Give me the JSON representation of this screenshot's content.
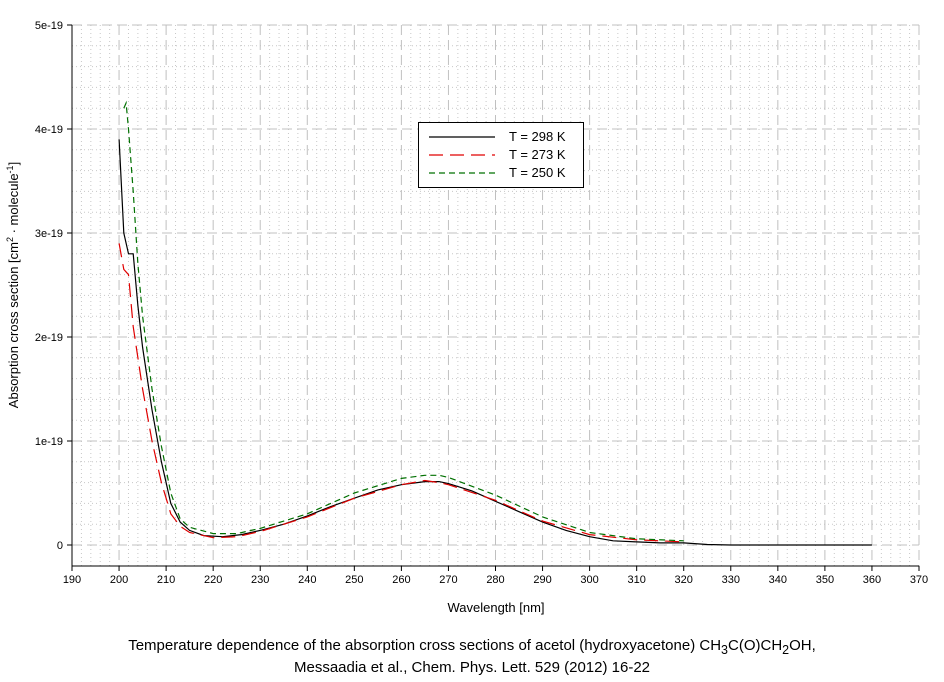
{
  "chart_data": {
    "type": "line",
    "title": "",
    "xlabel": "Wavelength [nm]",
    "ylabel": "Absorption cross section [cm² · molecule⁻¹]",
    "ylabel_main": "Absorption cross section [cm",
    "ylabel_sup1": "2",
    "ylabel_mid": " · molecule",
    "ylabel_sup2": "-1",
    "ylabel_end": "]",
    "xlim": [
      190,
      370
    ],
    "ylim": [
      0,
      5e-19
    ],
    "xticks": [
      190,
      200,
      210,
      220,
      230,
      240,
      250,
      260,
      270,
      280,
      290,
      300,
      310,
      320,
      330,
      340,
      350,
      360,
      370
    ],
    "yticks": [
      {
        "v": 0,
        "label": "0"
      },
      {
        "v": 1e-19,
        "label": "1e-19"
      },
      {
        "v": 2e-19,
        "label": "2e-19"
      },
      {
        "v": 3e-19,
        "label": "3e-19"
      },
      {
        "v": 4e-19,
        "label": "4e-19"
      },
      {
        "v": 5e-19,
        "label": "5e-19"
      }
    ],
    "grid": true,
    "legend_position": "top-center",
    "series": [
      {
        "name": "T = 298 K",
        "color": "#000000",
        "dash": "",
        "x": [
          200,
          201,
          202,
          203,
          204,
          205,
          207,
          209,
          211,
          213,
          215,
          218,
          222,
          226,
          230,
          235,
          240,
          245,
          250,
          255,
          260,
          265,
          268,
          270,
          275,
          280,
          285,
          290,
          295,
          300,
          305,
          310,
          315,
          320,
          325,
          330,
          360
        ],
        "y_e19": [
          3.9,
          3.0,
          2.8,
          2.8,
          2.3,
          1.9,
          1.3,
          0.8,
          0.4,
          0.22,
          0.14,
          0.09,
          0.08,
          0.1,
          0.14,
          0.2,
          0.28,
          0.37,
          0.45,
          0.53,
          0.58,
          0.61,
          0.61,
          0.59,
          0.52,
          0.42,
          0.32,
          0.22,
          0.14,
          0.08,
          0.04,
          0.03,
          0.02,
          0.02,
          0.005,
          0,
          0
        ]
      },
      {
        "name": "T = 273 K",
        "color": "#e00000",
        "dash": "14,7",
        "x": [
          200,
          201,
          202,
          203,
          205,
          207,
          209,
          211,
          213,
          215,
          220,
          225,
          230,
          240,
          250,
          260,
          265,
          268,
          270,
          280,
          290,
          300,
          310,
          320
        ],
        "y_e19": [
          2.9,
          2.65,
          2.6,
          2.1,
          1.5,
          1.0,
          0.6,
          0.3,
          0.18,
          0.12,
          0.07,
          0.08,
          0.13,
          0.27,
          0.45,
          0.58,
          0.62,
          0.6,
          0.58,
          0.43,
          0.23,
          0.1,
          0.05,
          0.03
        ]
      },
      {
        "name": "T = 250 K",
        "color": "#007000",
        "dash": "6,4",
        "x": [
          201,
          201.5,
          202,
          203,
          204,
          205,
          207,
          209,
          211,
          213,
          215,
          220,
          225,
          230,
          240,
          250,
          260,
          265,
          268,
          270,
          280,
          290,
          300,
          310,
          320
        ],
        "y_e19": [
          4.2,
          4.25,
          4.0,
          3.4,
          2.7,
          2.2,
          1.5,
          0.95,
          0.5,
          0.25,
          0.17,
          0.11,
          0.11,
          0.16,
          0.3,
          0.5,
          0.64,
          0.67,
          0.67,
          0.65,
          0.48,
          0.27,
          0.12,
          0.06,
          0.04
        ]
      }
    ]
  },
  "caption": {
    "line1_a": "Temperature dependence of the absorption cross sections of acetol (hydroxyacetone) CH",
    "sub1": "3",
    "line1_b": "C(O)CH",
    "sub2": "2",
    "line1_c": "OH,",
    "line2": "Messaadia et al., Chem. Phys. Lett. 529 (2012) 16-22"
  }
}
